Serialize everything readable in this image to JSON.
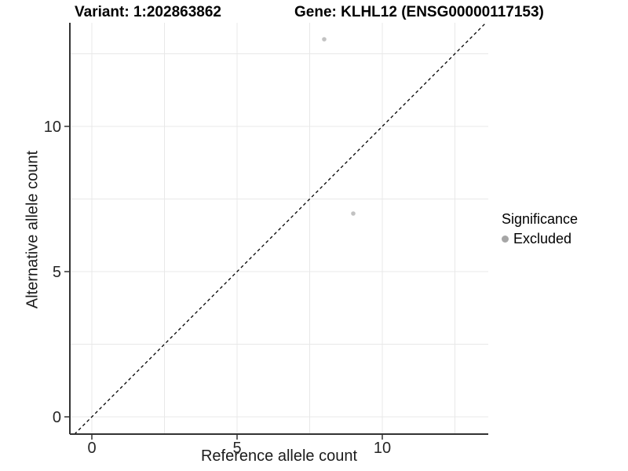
{
  "header": {
    "variant_title": "Variant: 1:202863862",
    "gene_title": "Gene: KLHL12 (ENSG00000117153)"
  },
  "axes": {
    "x": {
      "label": "Reference allele count",
      "ticks": [
        {
          "value": 0,
          "label": "0"
        },
        {
          "value": 5,
          "label": "5"
        },
        {
          "value": 10,
          "label": "10"
        }
      ]
    },
    "y": {
      "label": "Alternative allele count",
      "ticks": [
        {
          "value": 0,
          "label": "0"
        },
        {
          "value": 5,
          "label": "5"
        },
        {
          "value": 10,
          "label": "10"
        }
      ]
    }
  },
  "legend": {
    "title": "Significance",
    "items": [
      {
        "label": "Excluded",
        "marker_color": "#a6a6a6"
      }
    ]
  },
  "colors": {
    "background": "#ffffff",
    "axis_line": "#333333",
    "tick_mark": "#333333",
    "tick_text": "#262626",
    "gridline": "#e8e8e8",
    "point": "#c2c2c2",
    "reference_line": "#000000"
  },
  "chart_data": {
    "type": "scatter",
    "title": "Variant: 1:202863862 | Gene: KLHL12 (ENSG00000117153)",
    "xlabel": "Reference allele count",
    "ylabel": "Alternative allele count",
    "xlim": [
      -0.76,
      13.65
    ],
    "ylim": [
      -0.6,
      13.57
    ],
    "x_ticks": [
      0,
      5,
      10
    ],
    "y_ticks": [
      0,
      5,
      10
    ],
    "gridlines": {
      "major_x": [
        0,
        5,
        10
      ],
      "minor_x": [
        2.5,
        7.5,
        12.5
      ],
      "major_y": [
        0,
        5,
        10
      ],
      "minor_y": [
        2.5,
        7.5,
        12.5
      ]
    },
    "legend_position": "right-middle",
    "series": [
      {
        "name": "Excluded",
        "marker_color": "#c2c2c2",
        "points": [
          [
            8,
            13
          ],
          [
            9,
            7
          ]
        ]
      }
    ],
    "reference_line": {
      "kind": "identity y=x",
      "slope": 1,
      "intercept": 0,
      "linestyle": "dashed",
      "color": "#000000"
    }
  }
}
